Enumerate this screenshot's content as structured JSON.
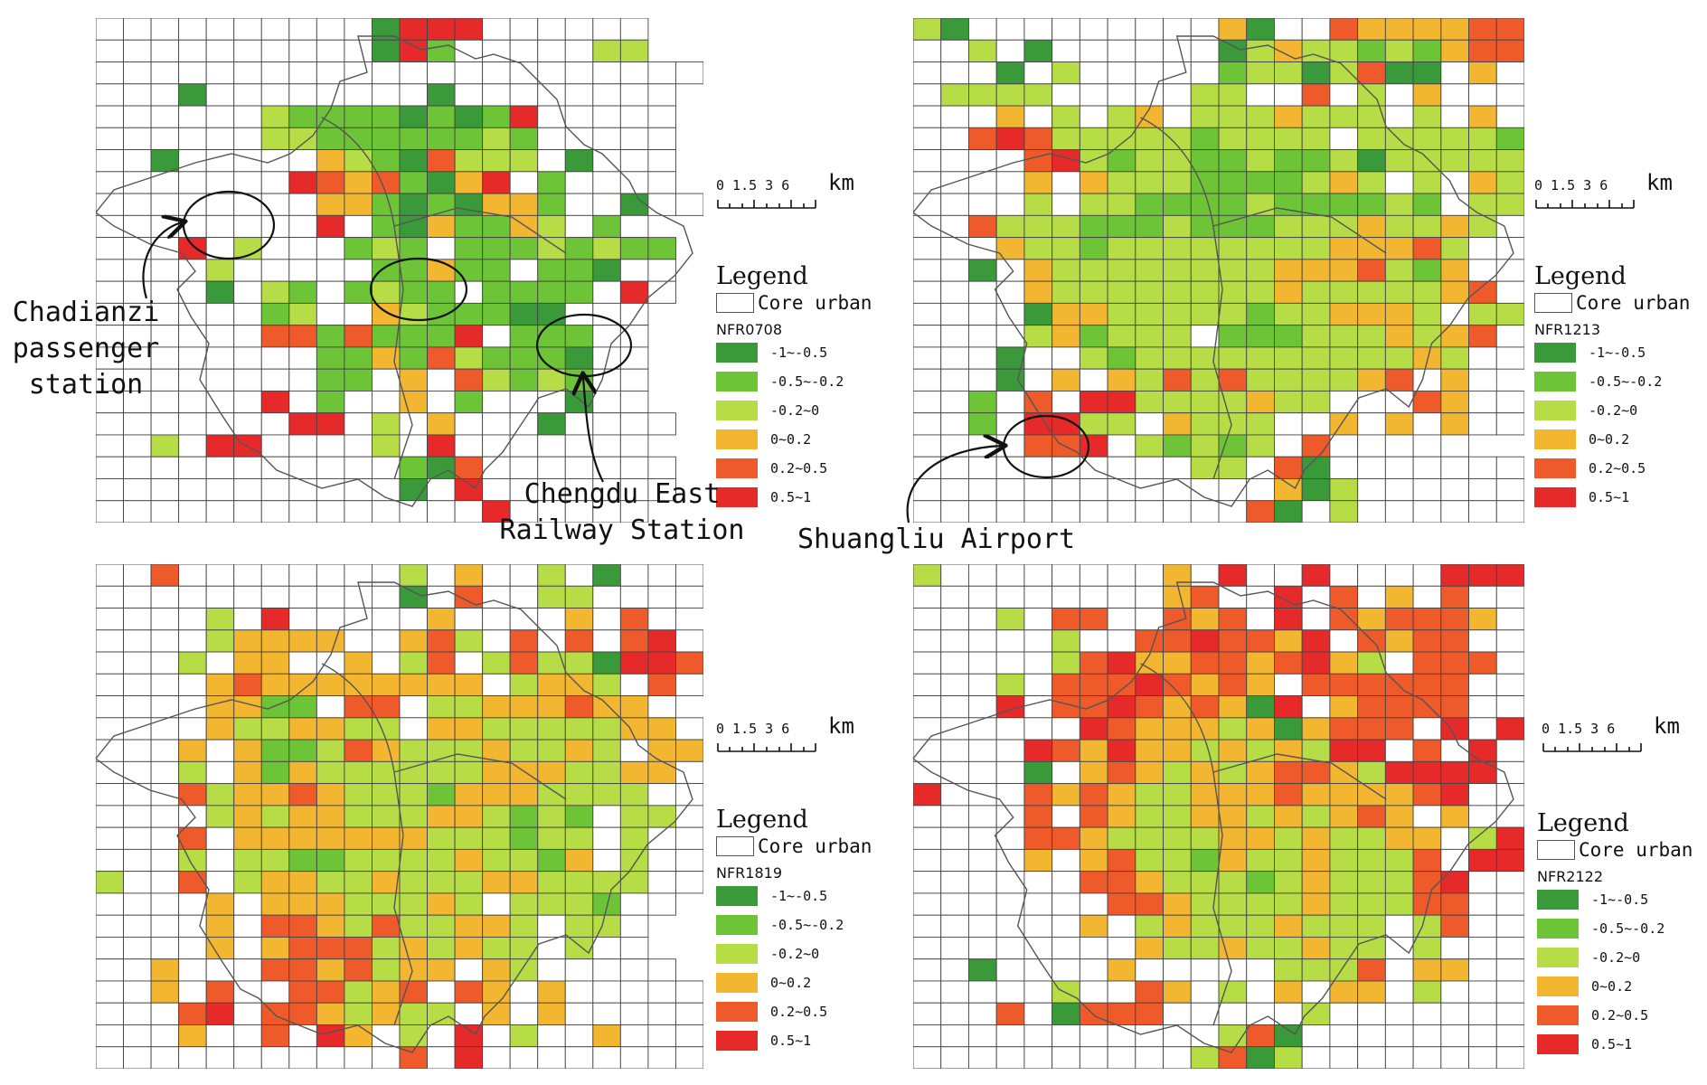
{
  "colors": {
    "c1": "#3a9a3a",
    "c2": "#6cc436",
    "c3": "#b6dc46",
    "c4": "#f2b630",
    "c5": "#ee5a2a",
    "c6": "#e62a2a",
    "grid": "#444444",
    "boundary": "#555555"
  },
  "classes": [
    {
      "label": "-1~-0.5",
      "color": "c1"
    },
    {
      "label": "-0.5~-0.2",
      "color": "c2"
    },
    {
      "label": "-0.2~0",
      "color": "c3"
    },
    {
      "label": "0~0.2",
      "color": "c4"
    },
    {
      "label": "0.2~0.5",
      "color": "c5"
    },
    {
      "label": "0.5~1",
      "color": "c6"
    }
  ],
  "scale_bar": {
    "ticks": "0 1.5 3    6",
    "unit": "km"
  },
  "legend_common": {
    "title": "Legend",
    "core_label": "Core urban"
  },
  "panels": [
    {
      "field": "NFR0708",
      "rows": [
        "..........1666......",
        "..........162.....33",
        "......................",
        "...1........1........",
        "......3222212126.....",
        "......3322222232.....",
        "..1.....43215333.1...",
        ".......65452146.2....",
        "........442121442..1..",
        "........6.2142243.2.",
        "...6.3...232.22232322",
        "....3.....22422.221..",
        "....1.32.2322.2222.6.",
        "......23..4322211...",
        "......55252226.222..",
        "........2242532221..",
        "........22.4.53232..",
        "......6.2..4.2...1..",
        ".......66.3.4...1....",
        "..3.66....3.6.......",
        "...........215.......",
        "...........1.6.......",
        "..............6....."
      ]
    },
    {
      "field": "NFR1213",
      "rows": [
        "31.........41..5444455",
        "..3.1......13433232455",
        "...1.3.....23313511.4.",
        ".3333.....33..5.3.4...",
        "...4.3.34.3334333.3.4.",
        "..5653333323333.333332.",
        "....563233223223133333",
        "....4.43332222343.3.433",
        "....3.3322223222232.33..",
        "..5333222322233343343..",
        "...43323333333344453...",
        "..1.4333333334445324...",
        "....43333333343333345..",
        "....144333332334443.33.",
        "....342333.2223334345.",
        "...1..32333333333343..",
        "...1.4.43535333345.4.",
        "..2.5.663333433...54..",
        "..2.6633.4333..4.4.4..",
        "....556.32323.5.....",
        "..........33.51.......",
        ".............413.......",
        "............51.3......."
      ]
    },
    {
      "field": "NFR1819",
      "rows": [
        "..5........3.4..3.1...",
        "...........1.5..33.....",
        "....3.6.....4....4.5.",
        "....34444..453.5.5.56..",
        "...3.44..4.35.35331665.",
        "....4544444444.3443.5.",
        "....4422.55.33444544.",
        "....4334433.443333344..",
        "...4.42235433343343.44.",
        "...3.4243333334443344..",
        "...53445433324443333...",
        "....34344333443232.33..",
        "...5.4444444333233.3..",
        "...3.3322333343324.3..",
        "3..5.344334333443333..",
        "....4.44433343.3332..",
        "....4.5543533443.33.",
        "....4.4555343433.3..",
        "..4...5545344.43.....",
        "..4.5..55345.54.4.....",
        "...56.5543433.4.4.....",
        "...4..5.64.3.6.3..4...",
        "...........5.6........"
      ]
    },
    {
      "field": "NFR2122",
      "rows": [
        "3........4.6..6....666",
        ".........45..6.5.4.5...",
        "...3.55..545.6.545554.",
        ".....3..5565546.5455...",
        ".....356445545643.555.",
        "...3.55565454.555555...",
        "...6.556545416.45555...",
        "......654443414555.6.6",
        "....6546443434366.5.6.",
        "....1.454343455436666.",
        "6...5454334445444456..",
        "....5.543344343454.4..",
        "....554333344343344.36",
        "....4.4533243343335.66",
        "......55433323433356..",
        ".......5543333433355..",
        "......4.343334333.35..",
        "........433433433.3...",
        "..1....4.....3335.44..",
        ".....3..54.3.4.44.3...",
        "...5.1555.....3.......",
        "...........351........",
        "..........3513........",
        "...........4.1........"
      ]
    }
  ],
  "annotations": {
    "chadianzi": [
      "Chadianzi",
      "passenger",
      "station"
    ],
    "chengdu_east": [
      "Chengdu East",
      "Railway Station"
    ],
    "shuangliu": "Shuangliu Airport"
  }
}
